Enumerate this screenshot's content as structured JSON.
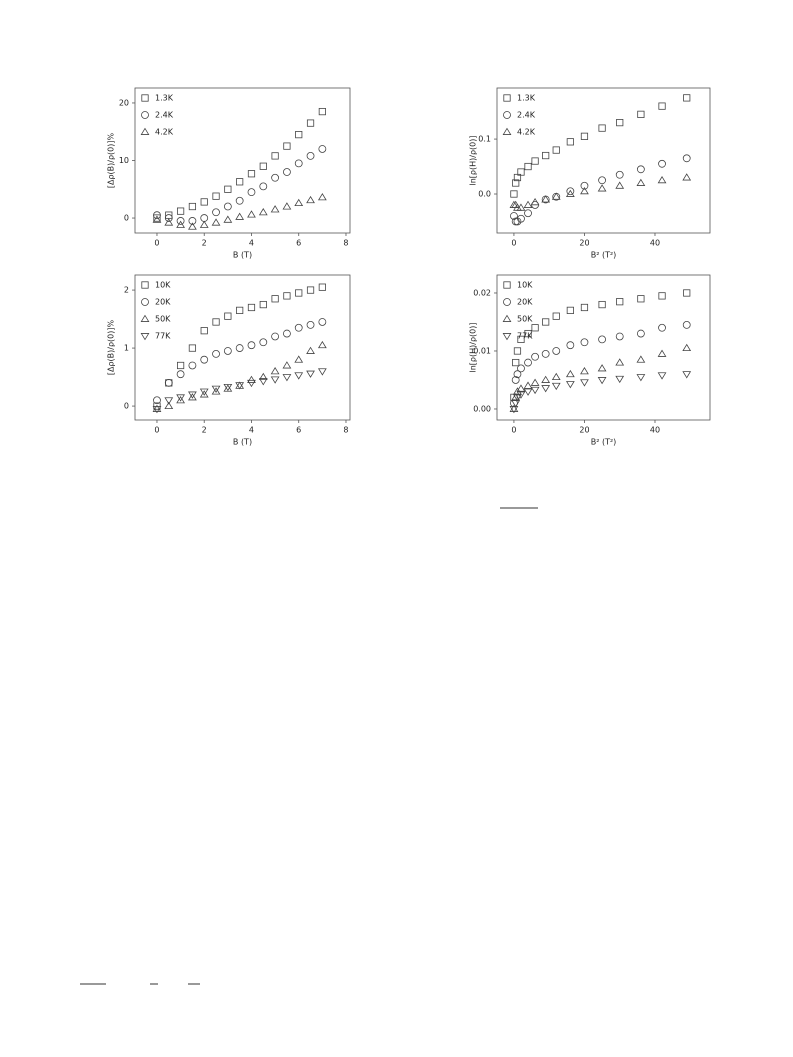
{
  "chart_data": [
    {
      "type": "scatter",
      "xlabel": "B (T)",
      "ylabel": "[Δρ(B)/ρ(0)]%",
      "x": [
        0,
        0.5,
        1,
        1.5,
        2,
        2.5,
        3,
        3.5,
        4,
        4.5,
        5,
        5.5,
        6,
        6.5,
        7
      ],
      "xlim": [
        -0.93,
        8.17
      ],
      "ylim": [
        -2.6,
        22.6
      ],
      "xticks": [
        0,
        2,
        4,
        6,
        8
      ],
      "yticks": [
        0,
        10,
        20
      ],
      "series": [
        {
          "name": "1.3K",
          "marker": "square",
          "color": "#444",
          "values": [
            0,
            0.5,
            1.2,
            2,
            2.8,
            3.8,
            5,
            6.3,
            7.7,
            9,
            10.8,
            12.5,
            14.5,
            16.5,
            18.5
          ]
        },
        {
          "name": "2.4K",
          "marker": "circle",
          "color": "#444",
          "values": [
            0.5,
            0,
            -0.5,
            -0.5,
            0,
            1,
            2,
            3,
            4.5,
            5.5,
            7,
            8,
            9.5,
            10.8,
            12
          ]
        },
        {
          "name": "4.2K",
          "marker": "triangle",
          "color": "#444",
          "values": [
            -0.3,
            -0.8,
            -1.2,
            -1.5,
            -1.2,
            -0.8,
            -0.3,
            0.2,
            0.6,
            1,
            1.5,
            2,
            2.6,
            3.1,
            3.6
          ]
        }
      ]
    },
    {
      "type": "scatter",
      "xlabel": "B² (T²)",
      "ylabel": "ln[ρ(H)/ρ(0)]",
      "x": [
        0,
        0.5,
        1,
        2,
        4,
        6,
        9,
        12,
        16,
        20,
        25,
        30,
        36,
        42,
        49
      ],
      "xlim": [
        -4.8,
        55.6
      ],
      "ylim": [
        -0.071,
        0.193
      ],
      "xticks": [
        0,
        20,
        40
      ],
      "yticks": [
        {
          "value": 0,
          "label": "0.0"
        },
        0.1
      ],
      "series": [
        {
          "name": "1.3K",
          "marker": "square",
          "color": "#444",
          "values": [
            0,
            0.02,
            0.03,
            0.04,
            0.05,
            0.06,
            0.07,
            0.08,
            0.095,
            0.105,
            0.12,
            0.13,
            0.145,
            0.16,
            0.175
          ]
        },
        {
          "name": "2.4K",
          "marker": "circle",
          "color": "#444",
          "values": [
            -0.04,
            -0.05,
            -0.05,
            -0.045,
            -0.035,
            -0.02,
            -0.01,
            -0.005,
            0.005,
            0.015,
            0.025,
            0.035,
            0.045,
            0.055,
            0.065
          ]
        },
        {
          "name": "4.2K",
          "marker": "triangle",
          "color": "#444",
          "values": [
            -0.02,
            -0.02,
            -0.025,
            -0.025,
            -0.02,
            -0.015,
            -0.01,
            -0.005,
            0,
            0.005,
            0.01,
            0.015,
            0.02,
            0.025,
            0.03
          ]
        }
      ]
    },
    {
      "type": "scatter",
      "xlabel": "B (T)",
      "ylabel": "[Δρ(B)/ρ(0)]%",
      "x": [
        0,
        0.5,
        1,
        1.5,
        2,
        2.5,
        3,
        3.5,
        4,
        4.5,
        5,
        5.5,
        6,
        6.5,
        7
      ],
      "xlim": [
        -0.93,
        8.17
      ],
      "ylim": [
        -0.24,
        2.26
      ],
      "xticks": [
        0,
        2,
        4,
        6,
        8
      ],
      "yticks": [
        0,
        1,
        2
      ],
      "series": [
        {
          "name": "10K",
          "marker": "square",
          "color": "#444",
          "values": [
            0,
            0.4,
            0.7,
            1.0,
            1.3,
            1.45,
            1.55,
            1.65,
            1.7,
            1.75,
            1.85,
            1.9,
            1.95,
            2.0,
            2.05
          ]
        },
        {
          "name": "20K",
          "marker": "circle",
          "color": "#444",
          "values": [
            0.1,
            0.4,
            0.55,
            0.7,
            0.8,
            0.9,
            0.95,
            1.0,
            1.05,
            1.1,
            1.2,
            1.25,
            1.35,
            1.4,
            1.45
          ]
        },
        {
          "name": "50K",
          "marker": "triangle",
          "color": "#444",
          "values": [
            -0.05,
            0,
            0.1,
            0.15,
            0.2,
            0.25,
            0.3,
            0.35,
            0.45,
            0.5,
            0.6,
            0.7,
            0.8,
            0.95,
            1.05
          ]
        },
        {
          "name": "77K",
          "marker": "triangle-down",
          "color": "#444",
          "values": [
            -0.05,
            0.1,
            0.15,
            0.2,
            0.25,
            0.3,
            0.33,
            0.36,
            0.4,
            0.43,
            0.46,
            0.5,
            0.53,
            0.56,
            0.6
          ]
        }
      ]
    },
    {
      "type": "scatter",
      "xlabel": "B² (T²)",
      "ylabel": "ln[ρ(H)/ρ(0)]",
      "x": [
        0,
        0.5,
        1,
        2,
        4,
        6,
        9,
        12,
        16,
        20,
        25,
        30,
        36,
        42,
        49
      ],
      "xlim": [
        -4.8,
        55.6
      ],
      "ylim": [
        -0.0019,
        0.0231
      ],
      "xticks": [
        0,
        20,
        40
      ],
      "yticks": [
        {
          "value": 0,
          "label": "0.00"
        },
        0.01,
        0.02
      ],
      "series": [
        {
          "name": "10K",
          "marker": "square",
          "color": "#444",
          "values": [
            0.002,
            0.008,
            0.01,
            0.012,
            0.013,
            0.014,
            0.015,
            0.016,
            0.017,
            0.0175,
            0.018,
            0.0185,
            0.019,
            0.0195,
            0.02
          ]
        },
        {
          "name": "20K",
          "marker": "circle",
          "color": "#444",
          "values": [
            0.001,
            0.005,
            0.006,
            0.007,
            0.008,
            0.009,
            0.0095,
            0.01,
            0.011,
            0.0115,
            0.012,
            0.0125,
            0.013,
            0.014,
            0.0145
          ]
        },
        {
          "name": "50K",
          "marker": "triangle",
          "color": "#444",
          "values": [
            0,
            0.002,
            0.003,
            0.0035,
            0.004,
            0.0045,
            0.005,
            0.0055,
            0.006,
            0.0065,
            0.007,
            0.008,
            0.0085,
            0.0095,
            0.0105
          ]
        },
        {
          "name": "77K",
          "marker": "triangle-down",
          "color": "#444",
          "values": [
            0,
            0.001,
            0.002,
            0.0025,
            0.003,
            0.0033,
            0.0036,
            0.004,
            0.0043,
            0.0046,
            0.005,
            0.0052,
            0.0055,
            0.0058,
            0.006
          ]
        }
      ]
    }
  ]
}
